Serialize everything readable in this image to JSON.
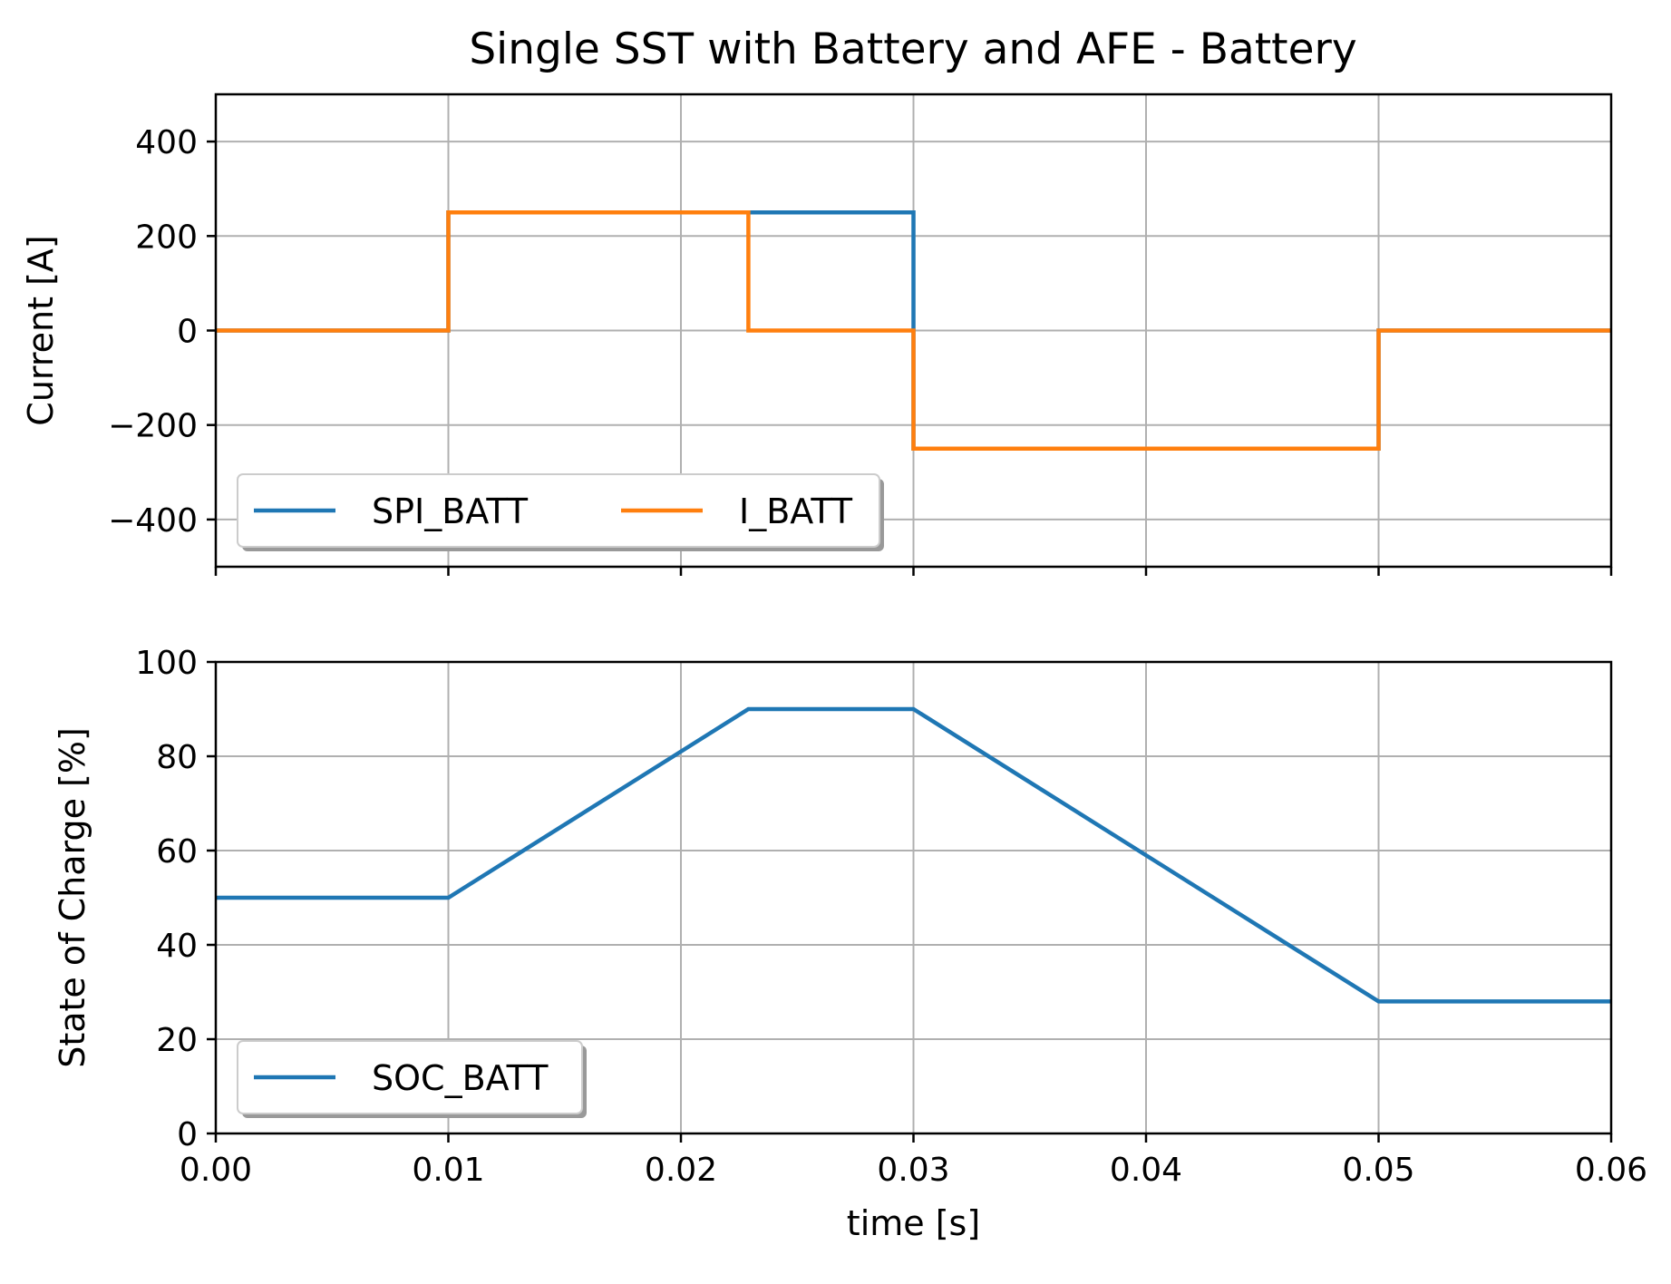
{
  "title": "Single SST with Battery and AFE - Battery",
  "chart_data": [
    {
      "type": "line",
      "ylabel": "Current [A]",
      "xlim": [
        0,
        0.06
      ],
      "ylim": [
        -500,
        500
      ],
      "xticks": [
        0,
        0.01,
        0.02,
        0.03,
        0.04,
        0.05,
        0.06
      ],
      "yticks": [
        -400,
        -200,
        0,
        200,
        400
      ],
      "ytick_labels": [
        "−400",
        "−200",
        "0",
        "200",
        "400"
      ],
      "grid": true,
      "legend": "lower-left",
      "legend_ncol": 2,
      "series": [
        {
          "name": "SPI_BATT",
          "color": "#1f77b4",
          "x": [
            0,
            0.01,
            0.01,
            0.03,
            0.03,
            0.05,
            0.05,
            0.06
          ],
          "y": [
            0,
            0,
            250,
            250,
            -250,
            -250,
            0,
            0
          ]
        },
        {
          "name": "I_BATT",
          "color": "#ff7f0e",
          "x": [
            0,
            0.01,
            0.01,
            0.0229,
            0.0229,
            0.03,
            0.03,
            0.05,
            0.05,
            0.06
          ],
          "y": [
            0,
            0,
            250,
            250,
            0,
            0,
            -250,
            -250,
            0,
            0
          ]
        }
      ]
    },
    {
      "type": "line",
      "ylabel": "State of Charge [%]",
      "xlabel": "time [s]",
      "xlim": [
        0,
        0.06
      ],
      "ylim": [
        0,
        100
      ],
      "xticks": [
        0,
        0.01,
        0.02,
        0.03,
        0.04,
        0.05,
        0.06
      ],
      "xtick_labels": [
        "0.00",
        "0.01",
        "0.02",
        "0.03",
        "0.04",
        "0.05",
        "0.06"
      ],
      "yticks": [
        0,
        20,
        40,
        60,
        80,
        100
      ],
      "ytick_labels": [
        "0",
        "20",
        "40",
        "60",
        "80",
        "100"
      ],
      "grid": true,
      "legend": "lower-left",
      "series": [
        {
          "name": "SOC_BATT",
          "color": "#1f77b4",
          "x": [
            0,
            0.01,
            0.0229,
            0.03,
            0.05,
            0.06
          ],
          "y": [
            50,
            50,
            90,
            90,
            28,
            28
          ]
        }
      ]
    }
  ]
}
